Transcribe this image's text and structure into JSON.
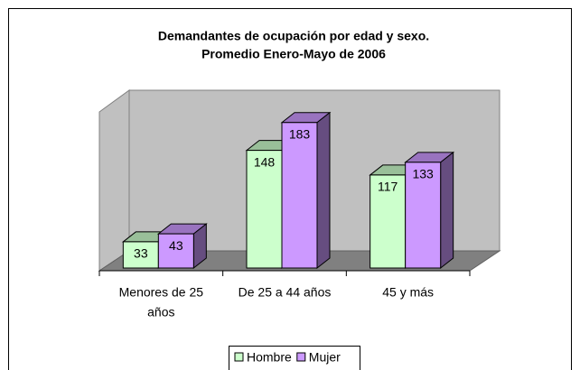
{
  "chart_data": {
    "type": "bar3d",
    "title": "Demandantes de ocupación por edad y sexo.",
    "subtitle": "Promedio Enero-Mayo de 2006",
    "categories": [
      [
        "Menores de 25",
        "años"
      ],
      [
        "De 25 a 44 años"
      ],
      [
        "45 y más"
      ]
    ],
    "series": [
      {
        "name": "Hombre",
        "color": "#ccffcc",
        "values": [
          33,
          148,
          117
        ]
      },
      {
        "name": "Mujer",
        "color": "#cc99ff",
        "values": [
          43,
          183,
          133
        ]
      }
    ],
    "ylim": [
      0,
      210
    ],
    "legend": "bottom"
  }
}
